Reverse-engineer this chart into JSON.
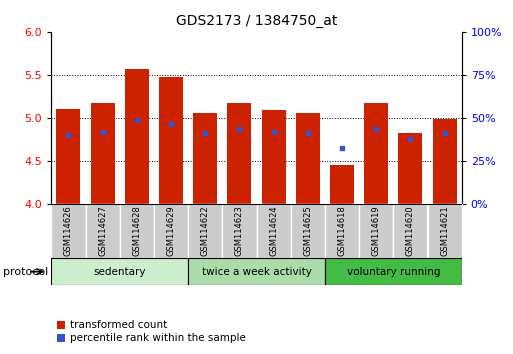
{
  "title": "GDS2173 / 1384750_at",
  "samples": [
    "GSM114626",
    "GSM114627",
    "GSM114628",
    "GSM114629",
    "GSM114622",
    "GSM114623",
    "GSM114624",
    "GSM114625",
    "GSM114618",
    "GSM114619",
    "GSM114620",
    "GSM114621"
  ],
  "bar_tops": [
    5.1,
    5.17,
    5.57,
    5.47,
    5.05,
    5.17,
    5.09,
    5.05,
    4.45,
    5.17,
    4.82,
    4.98
  ],
  "bar_base": 4.0,
  "blue_y": [
    4.8,
    4.83,
    4.97,
    4.93,
    4.82,
    4.87,
    4.83,
    4.82,
    4.65,
    4.87,
    4.75,
    4.82
  ],
  "ylim": [
    4.0,
    6.0
  ],
  "yticks_left": [
    4.0,
    4.5,
    5.0,
    5.5,
    6.0
  ],
  "yticks_right_vals": [
    4.0,
    4.5,
    5.0,
    5.5,
    6.0
  ],
  "yticks_right_labels": [
    "0%",
    "25%",
    "50%",
    "75%",
    "100%"
  ],
  "bar_color": "#cc2200",
  "blue_color": "#3355cc",
  "groups": [
    {
      "label": "sedentary",
      "start": 0,
      "end": 4,
      "color": "#cceecc"
    },
    {
      "label": "twice a week activity",
      "start": 4,
      "end": 8,
      "color": "#aaddaa"
    },
    {
      "label": "voluntary running",
      "start": 8,
      "end": 12,
      "color": "#44bb44"
    }
  ],
  "legend_red": "transformed count",
  "legend_blue": "percentile rank within the sample",
  "protocol_label": "protocol",
  "bar_width": 0.7,
  "fig_width": 5.13,
  "fig_height": 3.54,
  "dpi": 100
}
